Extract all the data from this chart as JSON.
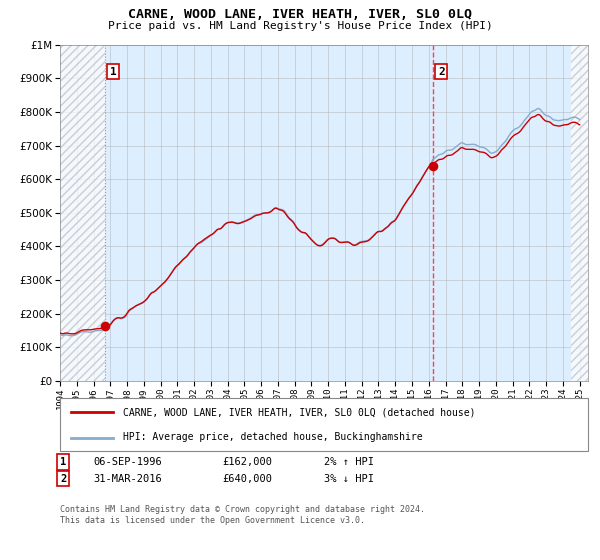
{
  "title": "CARNE, WOOD LANE, IVER HEATH, IVER, SL0 0LQ",
  "subtitle": "Price paid vs. HM Land Registry's House Price Index (HPI)",
  "legend_line1": "CARNE, WOOD LANE, IVER HEATH, IVER, SL0 0LQ (detached house)",
  "legend_line2": "HPI: Average price, detached house, Buckinghamshire",
  "annotation1_label": "1",
  "annotation1_date": "06-SEP-1996",
  "annotation1_price": "£162,000",
  "annotation1_hpi": "2% ↑ HPI",
  "annotation2_label": "2",
  "annotation2_date": "31-MAR-2016",
  "annotation2_price": "£640,000",
  "annotation2_hpi": "3% ↓ HPI",
  "footnote": "Contains HM Land Registry data © Crown copyright and database right 2024.\nThis data is licensed under the Open Government Licence v3.0.",
  "sale1_year": 1996.68,
  "sale1_price": 162000,
  "sale2_year": 2016.25,
  "sale2_price": 640000,
  "red_line_color": "#cc0000",
  "blue_line_color": "#88aacc",
  "point_color": "#cc0000",
  "dashed1_color": "#999999",
  "dashed2_color": "#ff4444",
  "plot_bg_color": "#ddeeff",
  "hatch_color": "#cccccc",
  "grid_color": "#aaaaaa",
  "ylim": [
    0,
    1000000
  ],
  "xlim_start": 1994.0,
  "xlim_end": 2025.5,
  "hatch_right_start": 2024.5
}
